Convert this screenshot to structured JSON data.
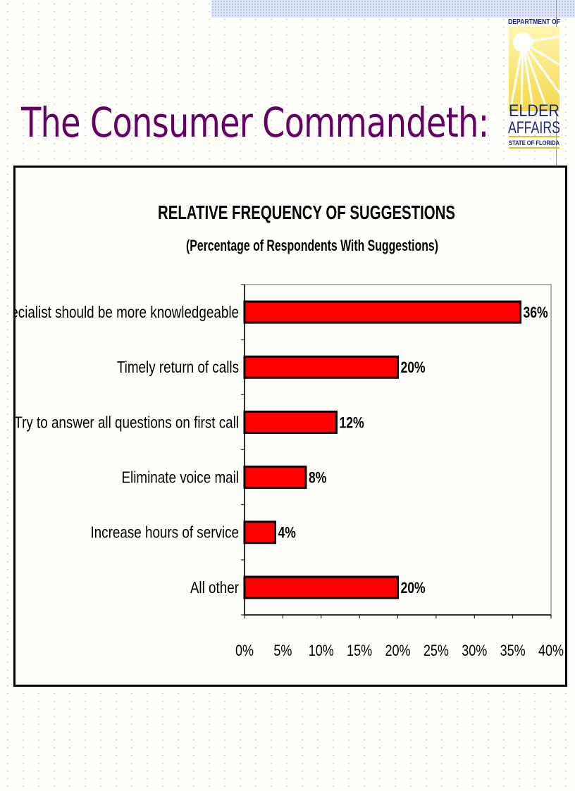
{
  "slide": {
    "title": "The Consumer Commandeth:",
    "logo": {
      "line1": "DEPARTMENT OF",
      "line2": "ELDER",
      "line3": "AFFAIRS",
      "line4": "STATE OF FLORIDA"
    }
  },
  "chart_data": {
    "type": "bar",
    "orientation": "horizontal",
    "title": "RELATIVE FREQUENCY OF SUGGESTIONS",
    "subtitle": "(Percentage of Respondents With Suggestions)",
    "categories": [
      "Specialist should be more knowledgeable",
      "Timely return of calls",
      "Try to answer all questions on first call",
      "Eliminate voice mail",
      "Increase hours of service",
      "All other"
    ],
    "values": [
      36,
      20,
      12,
      8,
      4,
      20
    ],
    "data_labels": [
      "36%",
      "20%",
      "12%",
      "8%",
      "4%",
      "20%"
    ],
    "xlim": [
      0,
      40
    ],
    "x_ticks": [
      "0%",
      "5%",
      "10%",
      "15%",
      "20%",
      "25%",
      "30%",
      "35%",
      "40%"
    ],
    "grid": false,
    "bar_color": "#ff0000"
  }
}
